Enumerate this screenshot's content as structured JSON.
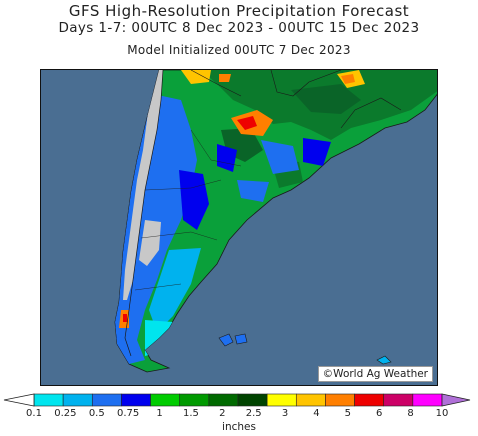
{
  "header": {
    "title": "GFS High-Resolution Precipitation Forecast",
    "valid_period": "Days 1-7: 00UTC 8 Dec 2023 - 00UTC 15 Dec 2023",
    "init": "Model Initialized 00UTC 7 Dec 2023"
  },
  "map": {
    "region": "Southern South America",
    "credit": "©World Ag Weather",
    "ocean_color": "#4a6e92",
    "dry_land_color": "#c8c8c8"
  },
  "colorbar": {
    "unit_label": "inches",
    "ticks": [
      "0.1",
      "0.25",
      "0.5",
      "0.75",
      "1",
      "1.5",
      "2",
      "2.5",
      "3",
      "4",
      "5",
      "6",
      "8",
      "10"
    ],
    "colors": [
      "#00e5ee",
      "#00b2ee",
      "#1e6ff0",
      "#0000ee",
      "#00cc00",
      "#009a00",
      "#006a00",
      "#004400",
      "#ffff00",
      "#ffc400",
      "#ff7f00",
      "#ee0000",
      "#cc0066",
      "#ff00ff",
      "#b070d8"
    ],
    "below_color": "#ffffff"
  }
}
